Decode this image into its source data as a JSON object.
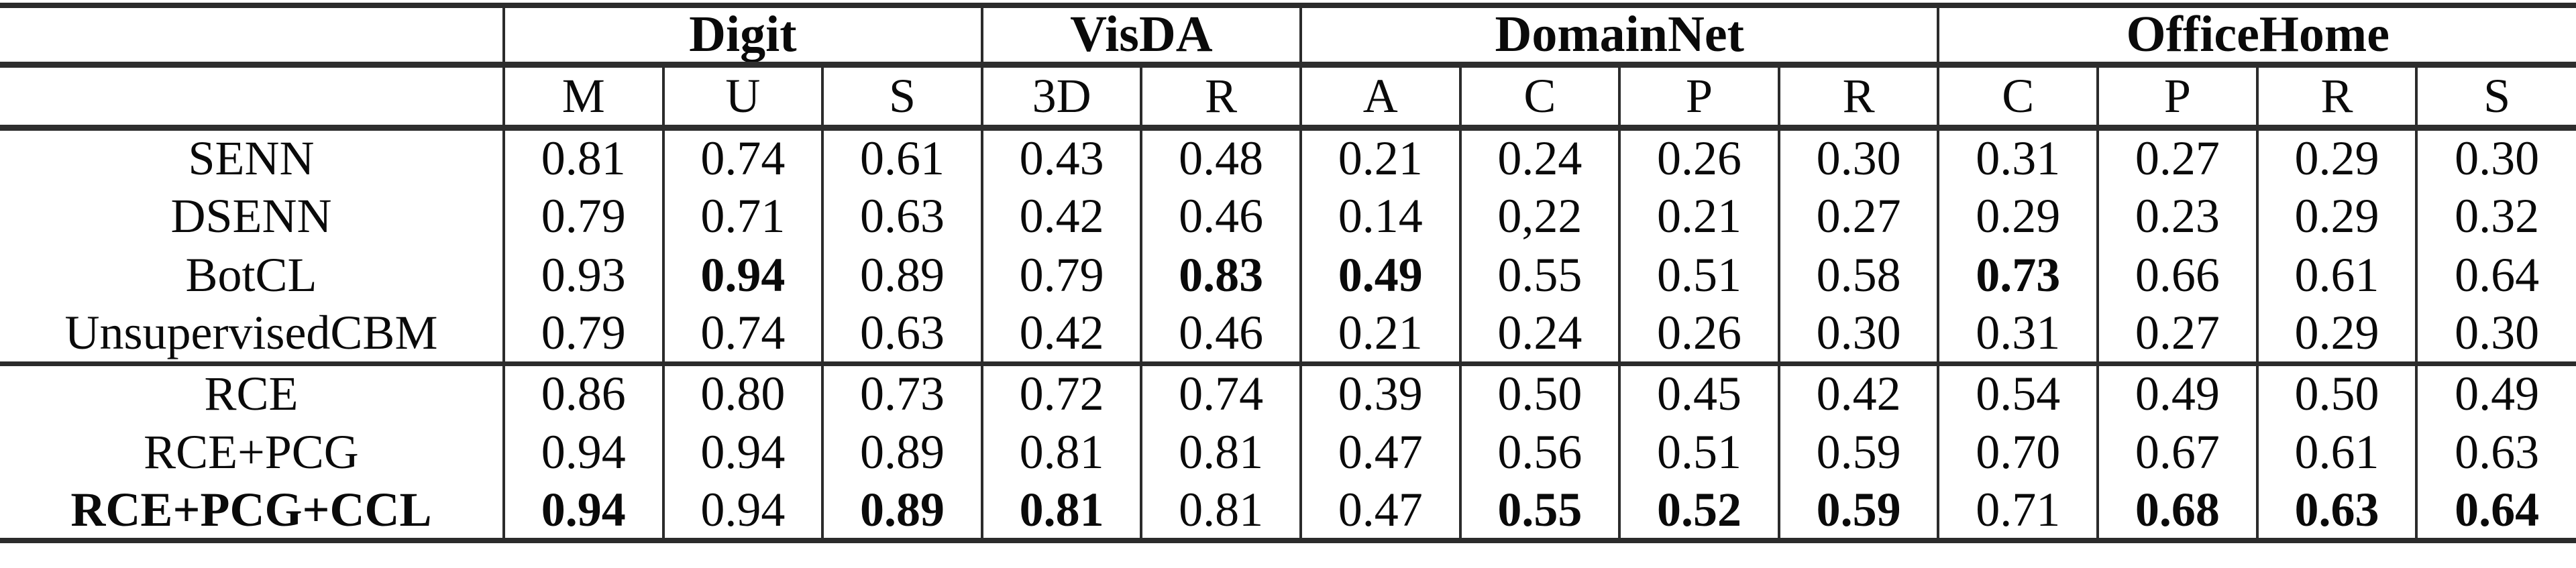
{
  "table": {
    "groups": [
      {
        "label": "",
        "span": 1
      },
      {
        "label": "Digit",
        "span": 3
      },
      {
        "label": "VisDA",
        "span": 2
      },
      {
        "label": "DomainNet",
        "span": 4
      },
      {
        "label": "OfficeHome",
        "span": 4
      }
    ],
    "subheaders": [
      "M",
      "U",
      "S",
      "3D",
      "R",
      "A",
      "C",
      "P",
      "R",
      "C",
      "P",
      "R",
      "S"
    ],
    "rows": [
      {
        "method": "SENN",
        "method_bold": false,
        "rule_above": false,
        "values": [
          "0.81",
          "0.74",
          "0.61",
          "0.43",
          "0.48",
          "0.21",
          "0.24",
          "0.26",
          "0.30",
          "0.31",
          "0.27",
          "0.29",
          "0.30"
        ],
        "bold": [
          false,
          false,
          false,
          false,
          false,
          false,
          false,
          false,
          false,
          false,
          false,
          false,
          false
        ]
      },
      {
        "method": "DSENN",
        "method_bold": false,
        "rule_above": false,
        "values": [
          "0.79",
          "0.71",
          "0.63",
          "0.42",
          "0.46",
          "0.14",
          "0,22",
          "0.21",
          "0.27",
          "0.29",
          "0.23",
          "0.29",
          "0.32"
        ],
        "bold": [
          false,
          false,
          false,
          false,
          false,
          false,
          false,
          false,
          false,
          false,
          false,
          false,
          false
        ]
      },
      {
        "method": "BotCL",
        "method_bold": false,
        "rule_above": false,
        "values": [
          "0.93",
          "0.94",
          "0.89",
          "0.79",
          "0.83",
          "0.49",
          "0.55",
          "0.51",
          "0.58",
          "0.73",
          "0.66",
          "0.61",
          "0.64"
        ],
        "bold": [
          false,
          true,
          false,
          false,
          true,
          true,
          false,
          false,
          false,
          true,
          false,
          false,
          false
        ]
      },
      {
        "method": "UnsupervisedCBM",
        "method_bold": false,
        "rule_above": false,
        "values": [
          "0.79",
          "0.74",
          "0.63",
          "0.42",
          "0.46",
          "0.21",
          "0.24",
          "0.26",
          "0.30",
          "0.31",
          "0.27",
          "0.29",
          "0.30"
        ],
        "bold": [
          false,
          false,
          false,
          false,
          false,
          false,
          false,
          false,
          false,
          false,
          false,
          false,
          false
        ]
      },
      {
        "method": "RCE",
        "method_bold": false,
        "rule_above": true,
        "values": [
          "0.86",
          "0.80",
          "0.73",
          "0.72",
          "0.74",
          "0.39",
          "0.50",
          "0.45",
          "0.42",
          "0.54",
          "0.49",
          "0.50",
          "0.49"
        ],
        "bold": [
          false,
          false,
          false,
          false,
          false,
          false,
          false,
          false,
          false,
          false,
          false,
          false,
          false
        ]
      },
      {
        "method": "RCE+PCG",
        "method_bold": false,
        "rule_above": false,
        "values": [
          "0.94",
          "0.94",
          "0.89",
          "0.81",
          "0.81",
          "0.47",
          "0.56",
          "0.51",
          "0.59",
          "0.70",
          "0.67",
          "0.61",
          "0.63"
        ],
        "bold": [
          false,
          false,
          false,
          false,
          false,
          false,
          false,
          false,
          false,
          false,
          false,
          false,
          false
        ]
      },
      {
        "method": "RCE+PCG+CCL",
        "method_bold": true,
        "rule_above": false,
        "values": [
          "0.94",
          "0.94",
          "0.89",
          "0.81",
          "0.81",
          "0.47",
          "0.55",
          "0.52",
          "0.59",
          "0.71",
          "0.68",
          "0.63",
          "0.64"
        ],
        "bold": [
          true,
          false,
          true,
          true,
          false,
          false,
          true,
          true,
          true,
          false,
          true,
          true,
          true
        ]
      }
    ]
  }
}
